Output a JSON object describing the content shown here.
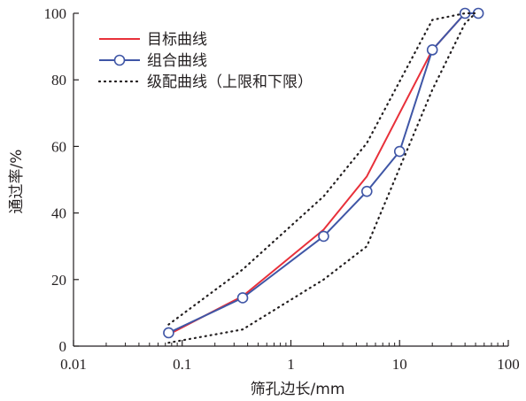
{
  "chart_data": {
    "type": "line",
    "xlabel": "筛孔边长/mm",
    "ylabel": "通过率/%",
    "xscale": "log",
    "xlim": [
      0.01,
      100
    ],
    "ylim": [
      0,
      100
    ],
    "xticks": [
      "0.01",
      "0.1",
      "1",
      "10",
      "100"
    ],
    "yticks": [
      "0",
      "20",
      "40",
      "60",
      "80",
      "100"
    ],
    "legend_position": "top-left",
    "series": [
      {
        "name": "目标曲线",
        "color": "#e8303a",
        "style": "solid",
        "marker": "none",
        "x": [
          0.075,
          0.36,
          2.0,
          5.0,
          20,
          40,
          50
        ],
        "y": [
          3.5,
          15,
          35,
          51,
          89,
          100,
          100
        ]
      },
      {
        "name": "组合曲线",
        "color": "#3f56a6",
        "style": "solid",
        "marker": "circle",
        "x": [
          0.075,
          0.36,
          2.0,
          5.0,
          10,
          20,
          40,
          53
        ],
        "y": [
          4,
          14.5,
          33,
          46.5,
          58.5,
          89,
          100,
          100
        ]
      },
      {
        "name": "级配曲线（上限和下限）",
        "color": "#231f20",
        "style": "dotted",
        "marker": "none",
        "x": [
          0.075,
          0.36,
          2.0,
          5.0,
          20,
          40,
          50
        ],
        "y": [
          6.5,
          23,
          45,
          61,
          98,
          100,
          100
        ]
      },
      {
        "name": "",
        "color": "#231f20",
        "style": "dotted",
        "marker": "none",
        "x": [
          0.075,
          0.36,
          2.0,
          5.0,
          20,
          40,
          50
        ],
        "y": [
          1,
          5,
          20,
          30,
          77,
          97,
          100
        ]
      }
    ]
  }
}
